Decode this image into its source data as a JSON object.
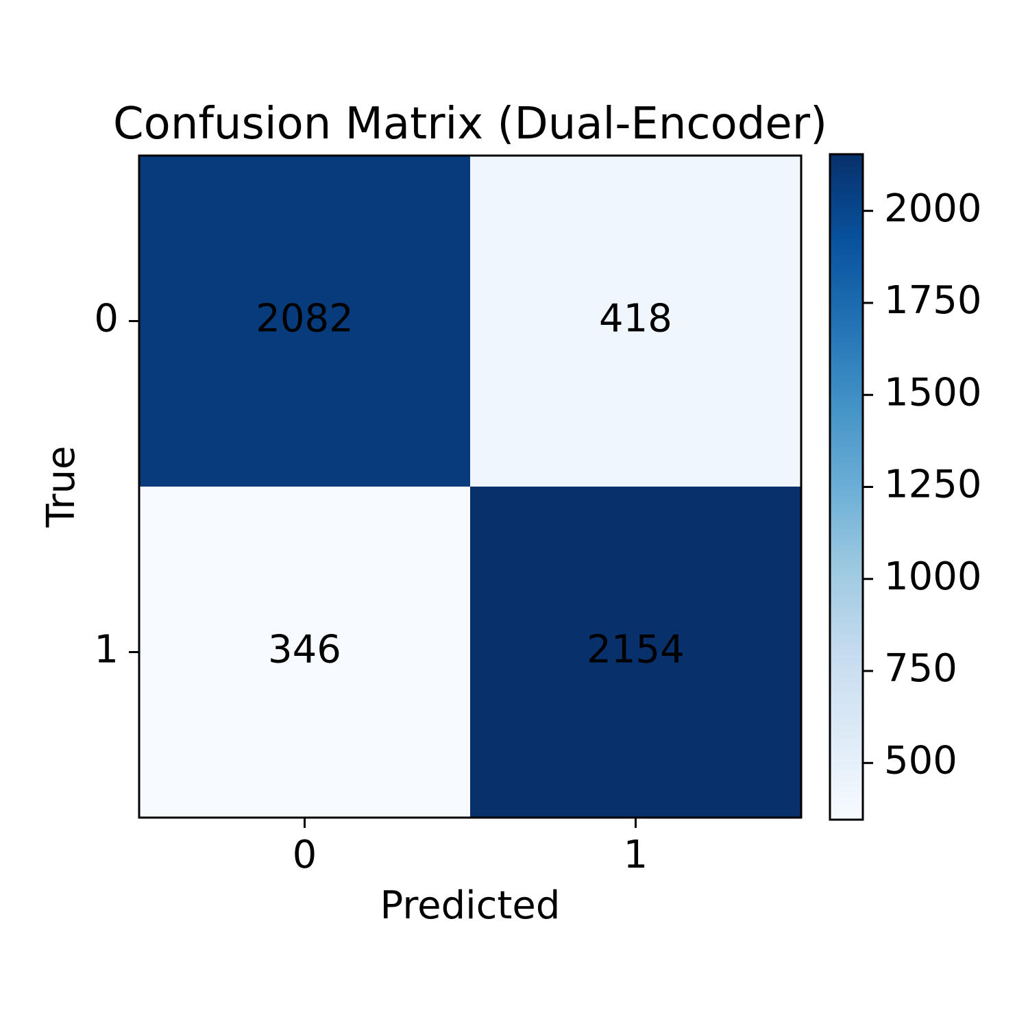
{
  "chart_data": {
    "type": "heatmap",
    "title": "Confusion Matrix (Dual-Encoder)",
    "xlabel": "Predicted",
    "ylabel": "True",
    "x_categories": [
      "0",
      "1"
    ],
    "y_categories": [
      "0",
      "1"
    ],
    "values": [
      [
        2082,
        418
      ],
      [
        346,
        2154
      ]
    ],
    "colormap": "Blues",
    "colorbar": {
      "range": [
        346,
        2154
      ],
      "ticks": [
        500,
        750,
        1000,
        1250,
        1500,
        1750,
        2000
      ],
      "tick_labels": [
        "500",
        "750",
        "1000",
        "1250",
        "1500",
        "1750",
        "2000"
      ]
    },
    "grid": false
  }
}
